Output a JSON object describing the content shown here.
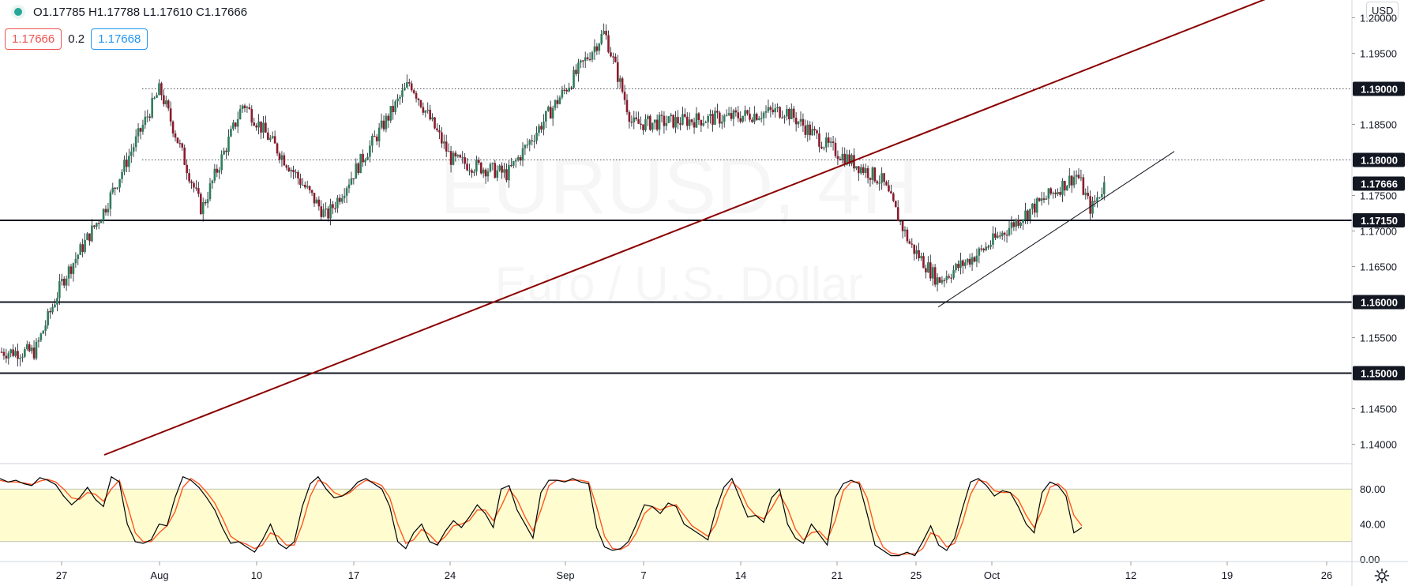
{
  "header": {
    "ohlc_label": "O1.17785  H1.17788  L1.17610  C1.17666",
    "bid_value": "1.17666",
    "spread_value": "0.2",
    "ask_value": "1.17668",
    "currency_label": "USD"
  },
  "colors": {
    "bull": "#26a69a",
    "bear": "#ef5350",
    "candle_body_up": "#2e7d5b",
    "candle_body_down": "#8b1a2b",
    "trendline_main": "#8b0000",
    "stoch_band": "#fffdd0",
    "stoch_k": "#000000",
    "stoch_d": "#ff5722"
  },
  "chart_data": {
    "type": "candlestick",
    "symbol_watermark": "EURUSD, 4H",
    "symbol_description": "Euro / U.S. Dollar",
    "x_axis": {
      "type": "time",
      "tick_labels": [
        "27",
        "Aug",
        "10",
        "17",
        "24",
        "Sep",
        "7",
        "14",
        "21",
        "25",
        "Oct",
        "12",
        "19",
        "26"
      ]
    },
    "y_axis": {
      "ylim": [
        1.1375,
        1.2025
      ],
      "tick_labels": [
        "1.20000",
        "1.19500",
        "1.19000",
        "1.18500",
        "1.18000",
        "1.17500",
        "1.17000",
        "1.16500",
        "1.16000",
        "1.15500",
        "1.15000",
        "1.14500",
        "1.14000"
      ],
      "highlighted_labels": [
        "1.19000",
        "1.18000",
        "1.17666",
        "1.17150",
        "1.16000",
        "1.15000"
      ]
    },
    "key_points": [
      {
        "x": "Jul 22",
        "close": 1.153
      },
      {
        "x": "Jul 24",
        "close": 1.163
      },
      {
        "x": "Jul 27",
        "close": 1.173
      },
      {
        "x": "Jul 31",
        "close": 1.19
      },
      {
        "x": "Aug 3",
        "close": 1.173
      },
      {
        "x": "Aug 6",
        "close": 1.188
      },
      {
        "x": "Aug 12",
        "close": 1.172
      },
      {
        "x": "Aug 18",
        "close": 1.191
      },
      {
        "x": "Aug 21",
        "close": 1.18
      },
      {
        "x": "Aug 25",
        "close": 1.178
      },
      {
        "x": "Sep 1",
        "close": 1.198
      },
      {
        "x": "Sep 3",
        "close": 1.185
      },
      {
        "x": "Sep 10",
        "close": 1.186
      },
      {
        "x": "Sep 14",
        "close": 1.187
      },
      {
        "x": "Sep 17",
        "close": 1.182
      },
      {
        "x": "Sep 21",
        "close": 1.177
      },
      {
        "x": "Sep 23",
        "close": 1.168
      },
      {
        "x": "Sep 25",
        "close": 1.163
      },
      {
        "x": "Sep 28",
        "close": 1.167
      },
      {
        "x": "Oct 1",
        "close": 1.172
      },
      {
        "x": "Oct 5",
        "close": 1.178
      },
      {
        "x": "Oct 6",
        "close": 1.173
      },
      {
        "x": "Oct 7",
        "close": 1.1767
      }
    ],
    "horizontal_lines": [
      {
        "price": 1.19,
        "style": "dotted"
      },
      {
        "price": 1.18,
        "style": "dotted"
      },
      {
        "price": 1.1715,
        "style": "solid"
      },
      {
        "price": 1.16,
        "style": "solid"
      },
      {
        "price": 1.15,
        "style": "solid"
      }
    ],
    "trendlines": [
      {
        "name": "rising-resistance",
        "from": {
          "x": "Jul 27",
          "price": 1.1385
        },
        "to": {
          "x": "Oct 21",
          "price": 1.2045
        }
      },
      {
        "name": "rising-support",
        "from": {
          "x": "Sep 25",
          "price": 1.1593
        },
        "to": {
          "x": "Oct 12",
          "price": 1.1812
        }
      }
    ],
    "stochastic": {
      "band": [
        20,
        80
      ],
      "tick_labels": [
        "80.00",
        "40.00",
        "0.00"
      ],
      "k_values": [
        92,
        88,
        90,
        86,
        84,
        93,
        90,
        85,
        72,
        62,
        70,
        82,
        68,
        60,
        94,
        88,
        40,
        20,
        18,
        22,
        40,
        38,
        70,
        94,
        90,
        82,
        70,
        56,
        35,
        18,
        20,
        14,
        8,
        22,
        40,
        18,
        12,
        20,
        60,
        86,
        94,
        80,
        70,
        72,
        78,
        88,
        92,
        86,
        80,
        60,
        20,
        12,
        30,
        40,
        20,
        16,
        32,
        44,
        36,
        48,
        62,
        52,
        36,
        80,
        84,
        56,
        40,
        24,
        76,
        90,
        90,
        88,
        92,
        88,
        86,
        36,
        14,
        10,
        12,
        20,
        40,
        62,
        60,
        52,
        64,
        60,
        40,
        34,
        28,
        22,
        56,
        82,
        92,
        70,
        48,
        50,
        42,
        70,
        80,
        40,
        24,
        18,
        40,
        28,
        16,
        70,
        86,
        90,
        86,
        52,
        16,
        10,
        4,
        4,
        8,
        4,
        20,
        38,
        16,
        10,
        24,
        58,
        88,
        92,
        84,
        72,
        78,
        76,
        60,
        40,
        30,
        76,
        88,
        84,
        72,
        30,
        36
      ],
      "d_values": [
        90,
        88,
        88,
        87,
        85,
        89,
        91,
        88,
        80,
        70,
        68,
        76,
        74,
        66,
        80,
        90,
        62,
        30,
        20,
        20,
        30,
        38,
        54,
        82,
        92,
        86,
        76,
        64,
        46,
        26,
        20,
        17,
        12,
        16,
        30,
        26,
        16,
        16,
        40,
        72,
        90,
        86,
        76,
        72,
        76,
        84,
        90,
        88,
        84,
        70,
        40,
        18,
        22,
        34,
        28,
        18,
        26,
        38,
        40,
        44,
        56,
        56,
        44,
        60,
        80,
        68,
        48,
        32,
        56,
        84,
        90,
        89,
        90,
        90,
        88,
        60,
        26,
        12,
        11,
        16,
        30,
        52,
        60,
        56,
        60,
        62,
        50,
        38,
        32,
        26,
        40,
        70,
        88,
        80,
        60,
        50,
        46,
        58,
        74,
        58,
        34,
        22,
        30,
        32,
        22,
        44,
        78,
        88,
        88,
        70,
        34,
        14,
        7,
        5,
        6,
        6,
        12,
        30,
        26,
        14,
        18,
        42,
        74,
        90,
        88,
        78,
        76,
        76,
        68,
        50,
        36,
        56,
        82,
        86,
        78,
        50,
        38
      ]
    }
  }
}
